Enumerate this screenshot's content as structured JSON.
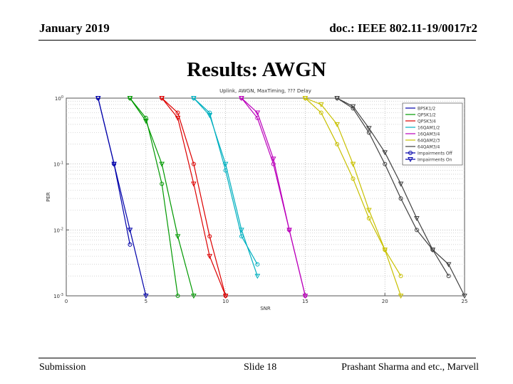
{
  "header": {
    "date": "January 2019",
    "doc_id": "doc.: IEEE 802.11-19/0017r2"
  },
  "slide_title": "Results: AWGN",
  "footer": {
    "left": "Submission",
    "center": "Slide 18",
    "right": "Prashant Sharma and etc., Marvell"
  },
  "chart_data": {
    "type": "line",
    "title": "Uplink, AWGN, MaxTiming, ??? Delay",
    "xlabel": "SNR",
    "ylabel": "PER",
    "xlim": [
      0,
      25
    ],
    "ylim": [
      0.001,
      1
    ],
    "yscale": "log",
    "xticks": [
      0,
      5,
      10,
      15,
      20,
      25
    ],
    "ytick_labels": [
      "10^0",
      "10^-1",
      "10^-2",
      "10^-3"
    ],
    "grid": true,
    "legend_position": "right",
    "legend": [
      "BPSK1/2",
      "QPSK1/2",
      "QPSK3/4",
      "16QAM1/2",
      "16QAM3/4",
      "64QAM2/3",
      "64QAM3/4",
      "Impairments Off",
      "Impairments On"
    ],
    "series": [
      {
        "name": "BPSK1/2",
        "color": "#0000aa",
        "impairments": "off",
        "x": [
          2,
          3,
          4
        ],
        "y": [
          1,
          0.1,
          0.006
        ]
      },
      {
        "name": "BPSK1/2",
        "color": "#0000aa",
        "impairments": "on",
        "x": [
          2,
          3,
          4,
          5
        ],
        "y": [
          1,
          0.1,
          0.01,
          0.001
        ]
      },
      {
        "name": "QPSK1/2",
        "color": "#009900",
        "impairments": "off",
        "x": [
          4,
          5,
          6,
          7
        ],
        "y": [
          1,
          0.5,
          0.05,
          0.001
        ]
      },
      {
        "name": "QPSK1/2",
        "color": "#009900",
        "impairments": "on",
        "x": [
          4,
          5,
          6,
          7,
          8
        ],
        "y": [
          1,
          0.45,
          0.1,
          0.008,
          0.001
        ]
      },
      {
        "name": "QPSK3/4",
        "color": "#dd0000",
        "impairments": "off",
        "x": [
          6,
          7,
          8,
          9,
          10
        ],
        "y": [
          1,
          0.6,
          0.1,
          0.008,
          0.001
        ]
      },
      {
        "name": "QPSK3/4",
        "color": "#dd0000",
        "impairments": "on",
        "x": [
          6,
          7,
          8,
          9,
          10
        ],
        "y": [
          1,
          0.5,
          0.05,
          0.004,
          0.001
        ]
      },
      {
        "name": "16QAM1/2",
        "color": "#00b0c0",
        "impairments": "off",
        "x": [
          8,
          9,
          10,
          11,
          12
        ],
        "y": [
          1,
          0.6,
          0.08,
          0.008,
          0.003
        ]
      },
      {
        "name": "16QAM1/2",
        "color": "#00b0c0",
        "impairments": "on",
        "x": [
          8,
          9,
          10,
          11,
          12
        ],
        "y": [
          1,
          0.55,
          0.1,
          0.01,
          0.002
        ]
      },
      {
        "name": "16QAM3/4",
        "color": "#bb00bb",
        "impairments": "off",
        "x": [
          11,
          12,
          13,
          14,
          15
        ],
        "y": [
          1,
          0.5,
          0.1,
          0.01,
          0.001
        ]
      },
      {
        "name": "16QAM3/4",
        "color": "#bb00bb",
        "impairments": "on",
        "x": [
          11,
          12,
          13,
          14,
          15
        ],
        "y": [
          1,
          0.6,
          0.12,
          0.01,
          0.001
        ]
      },
      {
        "name": "64QAM2/3",
        "color": "#c8c000",
        "impairments": "off",
        "x": [
          15,
          16,
          17,
          18,
          19,
          20,
          21
        ],
        "y": [
          1,
          0.6,
          0.2,
          0.06,
          0.015,
          0.005,
          0.002
        ]
      },
      {
        "name": "64QAM2/3",
        "color": "#c8c000",
        "impairments": "on",
        "x": [
          15,
          16,
          17,
          18,
          19,
          20,
          21
        ],
        "y": [
          1,
          0.8,
          0.4,
          0.1,
          0.02,
          0.005,
          0.001
        ]
      },
      {
        "name": "64QAM3/4",
        "color": "#404040",
        "impairments": "off",
        "x": [
          17,
          18,
          19,
          20,
          21,
          22,
          23,
          24
        ],
        "y": [
          1,
          0.7,
          0.3,
          0.1,
          0.03,
          0.01,
          0.005,
          0.002
        ]
      },
      {
        "name": "64QAM3/4",
        "color": "#404040",
        "impairments": "on",
        "x": [
          17,
          18,
          19,
          20,
          21,
          22,
          23,
          24,
          25
        ],
        "y": [
          1,
          0.75,
          0.35,
          0.15,
          0.05,
          0.015,
          0.005,
          0.003,
          0.001
        ]
      }
    ]
  }
}
